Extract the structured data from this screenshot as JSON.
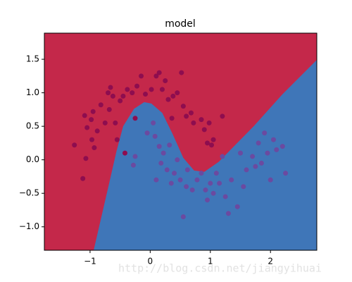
{
  "chart_data": {
    "type": "decision-scatter",
    "title": "model",
    "watermark": "http://blog.csdn.net/jiangyihuai",
    "xlim": [
      -1.76,
      2.77
    ],
    "ylim": [
      -1.35,
      1.89
    ],
    "xticks": [
      {
        "value": -1,
        "label": "−1"
      },
      0,
      1,
      2
    ],
    "yticks": [
      {
        "value": -1,
        "label": "−1.0"
      },
      {
        "value": -0.5,
        "label": "−0.5"
      },
      {
        "value": 0,
        "label": "0.0"
      },
      {
        "value": 0.5,
        "label": "0.5"
      },
      {
        "value": 1,
        "label": "1.0"
      },
      {
        "value": 1.5,
        "label": "1.5"
      }
    ],
    "background_color": "#c4284a",
    "boundary": {
      "color": "#3f76b8",
      "x": [
        -0.94,
        -0.68,
        -0.56,
        -0.45,
        -0.27,
        -0.1,
        0.02,
        0.2,
        0.37,
        0.55,
        0.73,
        0.9,
        1.14,
        1.37,
        1.72,
        2.19,
        2.77
      ],
      "values": [
        -1.35,
        -0.34,
        0.13,
        0.5,
        0.76,
        0.86,
        0.84,
        0.7,
        0.39,
        0.03,
        -0.16,
        -0.18,
        -0.03,
        0.18,
        0.5,
        0.97,
        1.49
      ]
    },
    "series": [
      {
        "color": "#8e0d4f",
        "x": [
          -1.26,
          -1.09,
          -1.07,
          -1.12,
          -1.05,
          -0.98,
          -0.95,
          -0.97,
          -0.93,
          -0.88,
          -0.82,
          -0.75,
          -0.7,
          -0.66,
          -0.62,
          -0.68,
          -0.58,
          -0.5,
          -0.45,
          -0.38,
          -0.3,
          -0.22,
          -0.15,
          -0.08,
          0.02,
          0.1,
          0.15,
          0.2,
          0.25,
          0.3,
          0.38,
          0.45,
          0.52,
          0.55,
          0.6,
          0.68,
          0.72,
          0.85,
          0.9,
          0.98,
          1.05,
          1.2,
          -0.55,
          -0.42,
          0.95,
          1.02,
          0.36,
          -0.25
        ],
        "values": [
          0.22,
          0.66,
          0.02,
          -0.28,
          0.48,
          0.6,
          0.72,
          0.3,
          0.18,
          0.43,
          0.82,
          0.55,
          1.0,
          1.08,
          0.95,
          0.75,
          0.55,
          0.88,
          0.95,
          1.05,
          1.0,
          1.1,
          1.25,
          0.98,
          1.05,
          1.25,
          1.3,
          1.05,
          1.18,
          0.9,
          0.95,
          1.0,
          1.3,
          0.8,
          0.65,
          0.7,
          0.55,
          0.6,
          0.45,
          0.55,
          0.3,
          0.65,
          0.3,
          0.1,
          0.25,
          0.22,
          0.62,
          0.62
        ]
      },
      {
        "color": "#6b4aa0",
        "x": [
          -0.25,
          -0.28,
          -0.05,
          0.05,
          0.08,
          0.15,
          0.18,
          0.22,
          0.28,
          0.32,
          0.35,
          0.4,
          0.45,
          0.5,
          0.55,
          0.6,
          0.62,
          0.7,
          0.78,
          0.85,
          0.92,
          0.95,
          1.0,
          1.05,
          1.1,
          1.15,
          1.25,
          1.3,
          1.35,
          1.45,
          1.55,
          1.6,
          1.7,
          1.75,
          1.8,
          1.85,
          1.9,
          1.95,
          2.0,
          2.05,
          2.1,
          2.2,
          2.25,
          1.5,
          1.2,
          0.1
        ],
        "values": [
          0.05,
          -0.08,
          0.4,
          0.55,
          0.35,
          0.2,
          -0.05,
          0.1,
          -0.15,
          0.22,
          -0.35,
          -0.2,
          0.0,
          -0.3,
          -0.85,
          -0.4,
          -0.15,
          -0.45,
          -0.3,
          -0.2,
          -0.45,
          -0.6,
          -0.35,
          -0.5,
          -0.2,
          -0.35,
          -0.55,
          -0.8,
          -0.3,
          -0.7,
          -0.4,
          -0.15,
          0.05,
          -0.1,
          0.25,
          -0.05,
          0.4,
          0.1,
          -0.3,
          0.3,
          0.15,
          0.2,
          -0.2,
          0.1,
          0.05,
          -0.3
        ]
      }
    ]
  }
}
